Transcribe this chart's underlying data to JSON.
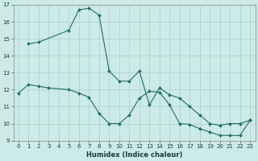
{
  "xlabel": "Humidex (Indice chaleur)",
  "xlim": [
    -0.5,
    23.5
  ],
  "ylim": [
    9,
    17
  ],
  "xticks": [
    0,
    1,
    2,
    3,
    4,
    5,
    6,
    7,
    8,
    9,
    10,
    11,
    12,
    13,
    14,
    15,
    16,
    17,
    18,
    19,
    20,
    21,
    22,
    23
  ],
  "yticks": [
    9,
    10,
    11,
    12,
    13,
    14,
    15,
    16,
    17
  ],
  "bg_color": "#cceae7",
  "grid_color": "#b0d4d0",
  "line_color": "#1e6e64",
  "line1_x": [
    0,
    1,
    2,
    3,
    5,
    6,
    7,
    8,
    9,
    10,
    11,
    12,
    13,
    14,
    15,
    16,
    17,
    18,
    19,
    20,
    21,
    22,
    23
  ],
  "line1_y": [
    11.8,
    12.3,
    12.2,
    12.1,
    12.0,
    11.8,
    11.55,
    10.6,
    10.0,
    10.0,
    10.5,
    11.5,
    11.9,
    11.85,
    11.1,
    10.0,
    9.95,
    9.7,
    9.5,
    9.3,
    9.3,
    9.3,
    10.2
  ],
  "line2_x": [
    1,
    2,
    5,
    6,
    7,
    8,
    9,
    10,
    11,
    12,
    13,
    14,
    15,
    16,
    17,
    18,
    19,
    20,
    21,
    22,
    23
  ],
  "line2_y": [
    14.7,
    14.8,
    15.5,
    16.7,
    16.8,
    16.4,
    13.1,
    12.5,
    12.5,
    13.1,
    11.1,
    12.1,
    11.7,
    11.5,
    11.0,
    10.5,
    10.0,
    9.9,
    10.0,
    10.0,
    10.2
  ]
}
